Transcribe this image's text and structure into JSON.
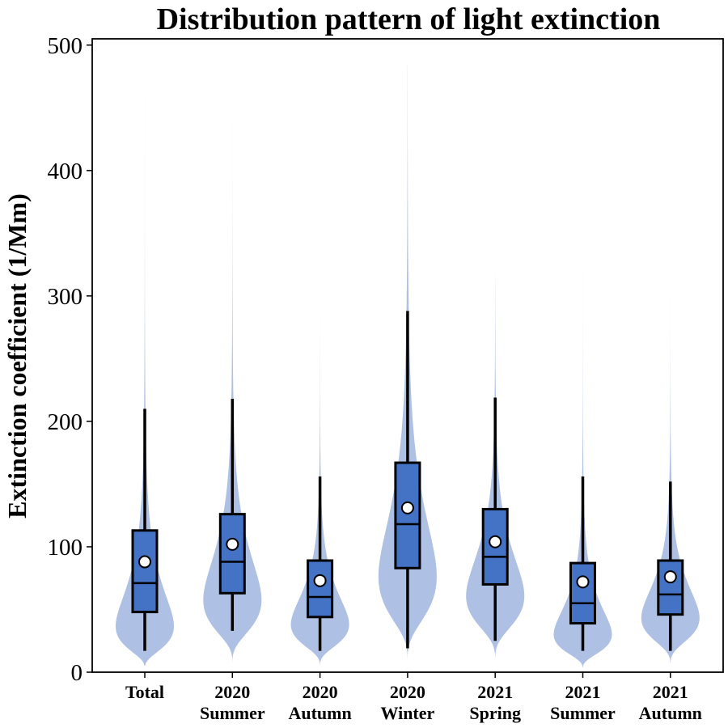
{
  "chart_data": {
    "type": "violin",
    "title": "Distribution pattern of light extinction",
    "xlabel": "",
    "ylabel": "Extinction coefficient (1/Mm)",
    "ylim": [
      0,
      505
    ],
    "yticks": [
      "0",
      "100",
      "200",
      "300",
      "400",
      "500"
    ],
    "grid": false,
    "legend": "none",
    "colors": {
      "violin": "#aec0e4",
      "box": "#4472c4",
      "line": "#000000",
      "mean_marker": "#ffffff"
    },
    "categories": [
      {
        "line1": "Total",
        "line2": ""
      },
      {
        "line1": "2020",
        "line2": "Summer"
      },
      {
        "line1": "2020",
        "line2": "Autumn"
      },
      {
        "line1": "2020",
        "line2": "Winter"
      },
      {
        "line1": "2021",
        "line2": "Spring"
      },
      {
        "line1": "2021",
        "line2": "Summer"
      },
      {
        "line1": "2021",
        "line2": "Autumn"
      }
    ],
    "series": [
      {
        "whisker_low": 17,
        "q1": 48,
        "median": 71,
        "q3": 113,
        "whisker_high": 210,
        "mean": 88,
        "violin_min": 5,
        "violin_max": 460,
        "mode": 55
      },
      {
        "whisker_low": 33,
        "q1": 63,
        "median": 88,
        "q3": 126,
        "whisker_high": 218,
        "mean": 102,
        "violin_min": 5,
        "violin_max": 440,
        "mode": 75
      },
      {
        "whisker_low": 17,
        "q1": 44,
        "median": 60,
        "q3": 89,
        "whisker_high": 156,
        "mean": 73,
        "violin_min": 5,
        "violin_max": 280,
        "mode": 50
      },
      {
        "whisker_low": 19,
        "q1": 83,
        "median": 118,
        "q3": 167,
        "whisker_high": 288,
        "mean": 131,
        "violin_min": 3,
        "violin_max": 485,
        "mode": 100
      },
      {
        "whisker_low": 25,
        "q1": 70,
        "median": 92,
        "q3": 130,
        "whisker_high": 219,
        "mean": 104,
        "violin_min": 5,
        "violin_max": 315,
        "mode": 75
      },
      {
        "whisker_low": 17,
        "q1": 39,
        "median": 55,
        "q3": 87,
        "whisker_high": 156,
        "mean": 72,
        "violin_min": 3,
        "violin_max": 380,
        "mode": 43
      },
      {
        "whisker_low": 17,
        "q1": 46,
        "median": 62,
        "q3": 89,
        "whisker_high": 152,
        "mean": 76,
        "violin_min": 3,
        "violin_max": 440,
        "mode": 55
      }
    ]
  }
}
